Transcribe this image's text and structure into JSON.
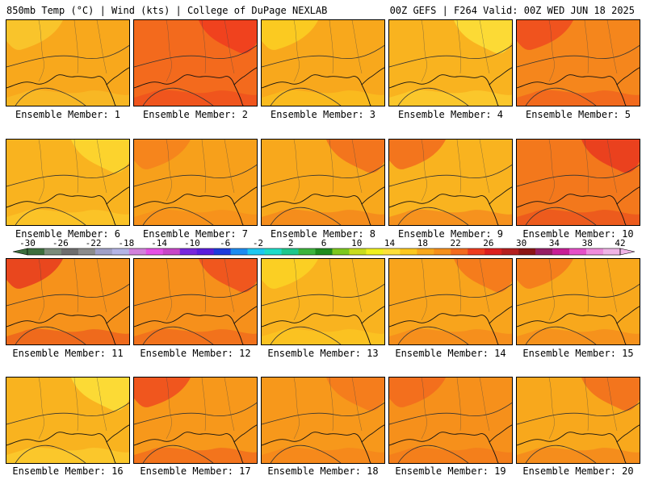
{
  "header": {
    "left": "850mb Temp (°C) | Wind (kts) | College of DuPage NEXLAB",
    "right": "00Z GEFS | F264 Valid: 00Z WED JUN 18 2025"
  },
  "members": [
    {
      "label": "Ensemble Member: 1",
      "fill": "#f8a81c",
      "accent": "#f9c92e"
    },
    {
      "label": "Ensemble Member: 2",
      "fill": "#f36a1d",
      "accent": "#ee3b1e"
    },
    {
      "label": "Ensemble Member: 3",
      "fill": "#f8a81c",
      "accent": "#fcd022"
    },
    {
      "label": "Ensemble Member: 4",
      "fill": "#f9b31f",
      "accent": "#fde03a"
    },
    {
      "label": "Ensemble Member: 5",
      "fill": "#f5861c",
      "accent": "#ef4a1f"
    },
    {
      "label": "Ensemble Member: 6",
      "fill": "#f9b31f",
      "accent": "#fdd830"
    },
    {
      "label": "Ensemble Member: 7",
      "fill": "#f7a01b",
      "accent": "#f6801c"
    },
    {
      "label": "Ensemble Member: 8",
      "fill": "#f8a81c",
      "accent": "#f26c1d"
    },
    {
      "label": "Ensemble Member: 9",
      "fill": "#f9b31f",
      "accent": "#f26a1d"
    },
    {
      "label": "Ensemble Member: 10",
      "fill": "#f3781c",
      "accent": "#e7371e"
    },
    {
      "label": "Ensemble Member: 11",
      "fill": "#f6921b",
      "accent": "#e63a1e"
    },
    {
      "label": "Ensemble Member: 12",
      "fill": "#f6901b",
      "accent": "#ee4e1e"
    },
    {
      "label": "Ensemble Member: 13",
      "fill": "#f9b31f",
      "accent": "#fcd424"
    },
    {
      "label": "Ensemble Member: 14",
      "fill": "#f8a41c",
      "accent": "#f4761c"
    },
    {
      "label": "Ensemble Member: 15",
      "fill": "#f8a81c",
      "accent": "#f4781c"
    },
    {
      "label": "Ensemble Member: 16",
      "fill": "#f9b31f",
      "accent": "#fde03a"
    },
    {
      "label": "Ensemble Member: 17",
      "fill": "#f7981b",
      "accent": "#ee4a1e"
    },
    {
      "label": "Ensemble Member: 18",
      "fill": "#f7981b",
      "accent": "#f4781c"
    },
    {
      "label": "Ensemble Member: 19",
      "fill": "#f6901b",
      "accent": "#f26a1d"
    },
    {
      "label": "Ensemble Member: 20",
      "fill": "#f8a81c",
      "accent": "#f26c1d"
    }
  ],
  "colorbar": {
    "ticks": [
      "-30",
      "-26",
      "-22",
      "-18",
      "-14",
      "-10",
      "-6",
      "-2",
      "2",
      "6",
      "10",
      "14",
      "18",
      "22",
      "26",
      "30",
      "34",
      "38",
      "42"
    ],
    "colors": [
      "#3c6e3c",
      "#7b8c7b",
      "#6e6e6e",
      "#8c8c8c",
      "#a0a0c8",
      "#b4b4e6",
      "#d282dc",
      "#e650e6",
      "#c846c8",
      "#7828dc",
      "#5a1edc",
      "#1e3cdc",
      "#1e8cf0",
      "#1ec8f0",
      "#1edcc8",
      "#1ec88c",
      "#3cb43c",
      "#1e8c1e",
      "#7cc81e",
      "#c8dc1e",
      "#f0f01e",
      "#fde03a",
      "#fcc81e",
      "#f9a81c",
      "#f6901b",
      "#f36a1d",
      "#ee3b1e",
      "#dc1e1e",
      "#b41e1e",
      "#8c1414",
      "#961e64",
      "#c81e96",
      "#e650c8",
      "#f08cdc",
      "#f0b4e6"
    ]
  }
}
